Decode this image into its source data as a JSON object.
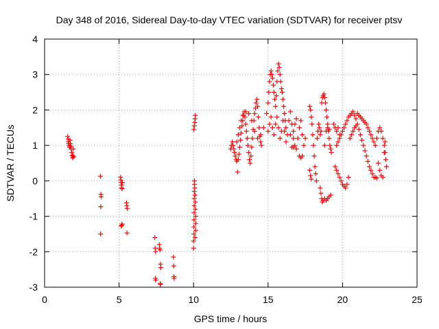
{
  "chart_data": {
    "type": "scatter",
    "title": "Day 348 of 2016, Sidereal Day-to-day VTEC variation (SDTVAR) for receiver ptsv",
    "xlabel": "GPS time / hours",
    "ylabel": "SDTVAR / TECUs",
    "xlim": [
      0,
      25
    ],
    "ylim": [
      -3,
      4
    ],
    "x_ticks": [
      0,
      5,
      10,
      15,
      20,
      25
    ],
    "y_ticks": [
      -3,
      -2,
      -1,
      0,
      1,
      2,
      3,
      4
    ],
    "grid": true,
    "marker": "+",
    "color": "#ff0000",
    "series": [
      {
        "name": "SDTVAR",
        "points": [
          [
            1.55,
            1.25
          ],
          [
            1.58,
            1.18
          ],
          [
            1.6,
            1.1
          ],
          [
            1.62,
            1.05
          ],
          [
            1.65,
            1.0
          ],
          [
            1.68,
            0.95
          ],
          [
            1.7,
            1.15
          ],
          [
            1.72,
            1.05
          ],
          [
            1.75,
            0.98
          ],
          [
            1.78,
            0.9
          ],
          [
            1.82,
            0.8
          ],
          [
            1.85,
            0.72
          ],
          [
            1.88,
            0.65
          ],
          [
            1.9,
            0.7
          ],
          [
            1.92,
            0.9
          ],
          [
            1.95,
            0.68
          ],
          [
            3.75,
            0.13
          ],
          [
            3.78,
            -0.38
          ],
          [
            3.8,
            -0.45
          ],
          [
            3.77,
            -0.73
          ],
          [
            3.76,
            -1.5
          ],
          [
            5.1,
            0.1
          ],
          [
            5.12,
            0.02
          ],
          [
            5.14,
            -0.05
          ],
          [
            5.16,
            -0.12
          ],
          [
            5.18,
            -0.2
          ],
          [
            5.2,
            -0.22
          ],
          [
            5.15,
            -1.28
          ],
          [
            5.18,
            -1.25
          ],
          [
            5.2,
            -1.22
          ],
          [
            5.22,
            -0.05
          ],
          [
            5.5,
            -0.62
          ],
          [
            5.52,
            -0.7
          ],
          [
            5.55,
            -0.78
          ],
          [
            5.53,
            -1.47
          ],
          [
            7.4,
            -1.6
          ],
          [
            7.42,
            -1.9
          ],
          [
            7.45,
            -2.0
          ],
          [
            7.44,
            -2.75
          ],
          [
            7.46,
            -2.8
          ],
          [
            7.7,
            -1.8
          ],
          [
            7.72,
            -1.9
          ],
          [
            7.75,
            -1.95
          ],
          [
            7.78,
            -2.35
          ],
          [
            7.8,
            -2.45
          ],
          [
            7.76,
            -2.9
          ],
          [
            7.78,
            -2.92
          ],
          [
            8.65,
            -2.15
          ],
          [
            8.67,
            -2.4
          ],
          [
            8.68,
            -2.7
          ],
          [
            8.7,
            -2.75
          ],
          [
            10.0,
            -1.9
          ],
          [
            10.0,
            -1.7
          ],
          [
            10.02,
            -1.5
          ],
          [
            10.02,
            -1.3
          ],
          [
            10.03,
            -1.1
          ],
          [
            10.03,
            -0.9
          ],
          [
            10.04,
            -0.7
          ],
          [
            10.04,
            -0.5
          ],
          [
            10.05,
            -0.3
          ],
          [
            10.06,
            -0.1
          ],
          [
            10.06,
            0.0
          ],
          [
            10.08,
            -0.2
          ],
          [
            10.1,
            -0.4
          ],
          [
            10.12,
            -0.6
          ],
          [
            10.12,
            -0.8
          ],
          [
            10.14,
            -1.0
          ],
          [
            10.15,
            -1.2
          ],
          [
            10.15,
            -1.4
          ],
          [
            10.1,
            -1.6
          ],
          [
            10.02,
            1.45
          ],
          [
            10.05,
            1.55
          ],
          [
            10.08,
            1.65
          ],
          [
            10.1,
            1.75
          ],
          [
            10.12,
            1.85
          ],
          [
            12.5,
            0.9
          ],
          [
            12.55,
            1.0
          ],
          [
            12.6,
            1.1
          ],
          [
            12.65,
            1.0
          ],
          [
            12.7,
            0.9
          ],
          [
            12.75,
            0.8
          ],
          [
            12.8,
            0.7
          ],
          [
            12.85,
            0.6
          ],
          [
            12.9,
            0.55
          ],
          [
            12.95,
            0.25
          ],
          [
            13.0,
            0.6
          ],
          [
            13.05,
            0.75
          ],
          [
            13.1,
            0.95
          ],
          [
            13.15,
            1.15
          ],
          [
            13.2,
            1.35
          ],
          [
            13.25,
            1.55
          ],
          [
            13.3,
            1.7
          ],
          [
            13.35,
            1.85
          ],
          [
            13.4,
            1.95
          ],
          [
            13.45,
            1.8
          ],
          [
            13.5,
            1.6
          ],
          [
            13.55,
            1.4
          ],
          [
            13.6,
            1.2
          ],
          [
            13.65,
            1.0
          ],
          [
            13.7,
            0.8
          ],
          [
            13.75,
            0.6
          ],
          [
            13.8,
            0.5
          ],
          [
            13.85,
            0.7
          ],
          [
            13.9,
            0.95
          ],
          [
            13.95,
            1.2
          ],
          [
            14.0,
            1.45
          ],
          [
            14.05,
            1.7
          ],
          [
            14.1,
            1.9
          ],
          [
            14.15,
            2.05
          ],
          [
            14.2,
            2.2
          ],
          [
            14.25,
            2.3
          ],
          [
            14.3,
            2.1
          ],
          [
            14.35,
            1.8
          ],
          [
            14.4,
            1.5
          ],
          [
            14.45,
            1.25
          ],
          [
            14.5,
            1.1
          ],
          [
            14.55,
            1.0
          ],
          [
            12.9,
            1.1
          ],
          [
            13.0,
            1.3
          ],
          [
            13.1,
            1.5
          ],
          [
            13.2,
            1.7
          ],
          [
            13.3,
            1.85
          ],
          [
            13.5,
            1.95
          ],
          [
            13.7,
            1.9
          ],
          [
            13.9,
            1.7
          ],
          [
            14.1,
            1.4
          ],
          [
            14.3,
            1.2
          ],
          [
            14.5,
            1.3
          ],
          [
            14.7,
            1.5
          ],
          [
            14.9,
            1.9
          ],
          [
            15.0,
            2.2
          ],
          [
            15.05,
            2.5
          ],
          [
            15.1,
            2.8
          ],
          [
            15.15,
            3.0
          ],
          [
            15.2,
            3.1
          ],
          [
            15.25,
            3.0
          ],
          [
            15.3,
            2.9
          ],
          [
            15.35,
            2.7
          ],
          [
            15.4,
            2.5
          ],
          [
            15.45,
            2.3
          ],
          [
            15.5,
            2.1
          ],
          [
            15.55,
            2.4
          ],
          [
            15.6,
            2.8
          ],
          [
            15.65,
            3.1
          ],
          [
            15.7,
            3.3
          ],
          [
            15.75,
            3.2
          ],
          [
            15.8,
            3.0
          ],
          [
            15.85,
            2.8
          ],
          [
            15.9,
            2.6
          ],
          [
            15.95,
            2.5
          ],
          [
            16.0,
            2.3
          ],
          [
            16.05,
            2.1
          ],
          [
            16.1,
            1.9
          ],
          [
            16.15,
            1.7
          ],
          [
            16.2,
            1.5
          ],
          [
            15.0,
            1.4
          ],
          [
            15.1,
            1.6
          ],
          [
            15.2,
            1.8
          ],
          [
            15.3,
            1.5
          ],
          [
            15.4,
            1.3
          ],
          [
            15.5,
            1.6
          ],
          [
            15.6,
            1.8
          ],
          [
            15.7,
            1.5
          ],
          [
            15.8,
            1.2
          ],
          [
            15.9,
            1.4
          ],
          [
            16.0,
            1.7
          ],
          [
            16.1,
            1.4
          ],
          [
            16.2,
            1.1
          ],
          [
            16.3,
            1.3
          ],
          [
            16.4,
            1.7
          ],
          [
            16.5,
            1.95
          ],
          [
            16.6,
            1.6
          ],
          [
            16.7,
            1.2
          ],
          [
            16.8,
            1.0
          ],
          [
            16.9,
            0.9
          ],
          [
            17.0,
            1.2
          ],
          [
            17.1,
            1.5
          ],
          [
            17.2,
            1.7
          ],
          [
            17.3,
            1.3
          ],
          [
            17.4,
            1.0
          ],
          [
            17.5,
            1.2
          ],
          [
            16.7,
            1.4
          ],
          [
            16.8,
            1.6
          ],
          [
            16.9,
            1.75
          ],
          [
            17.1,
            0.7
          ],
          [
            17.2,
            0.65
          ],
          [
            17.3,
            0.7
          ],
          [
            16.5,
            1.3
          ],
          [
            16.6,
            0.95
          ],
          [
            16.7,
            0.95
          ],
          [
            17.8,
            2.1
          ],
          [
            17.85,
            2.0
          ],
          [
            17.9,
            1.8
          ],
          [
            17.95,
            1.6
          ],
          [
            18.0,
            1.3
          ],
          [
            18.05,
            1.0
          ],
          [
            18.1,
            0.7
          ],
          [
            18.15,
            0.4
          ],
          [
            18.2,
            0.2
          ],
          [
            18.25,
            0.0
          ],
          [
            17.8,
            0.3
          ],
          [
            17.85,
            0.15
          ],
          [
            17.9,
            0.05
          ],
          [
            18.3,
            1.2
          ],
          [
            18.35,
            1.4
          ],
          [
            18.4,
            1.6
          ],
          [
            18.45,
            1.5
          ],
          [
            18.5,
            1.3
          ],
          [
            18.55,
            1.4
          ],
          [
            18.6,
            2.2
          ],
          [
            18.65,
            2.35
          ],
          [
            18.7,
            2.4
          ],
          [
            18.75,
            2.45
          ],
          [
            18.8,
            2.35
          ],
          [
            18.85,
            2.2
          ],
          [
            18.9,
            2.0
          ],
          [
            18.95,
            1.8
          ],
          [
            19.0,
            1.6
          ],
          [
            19.05,
            1.4
          ],
          [
            19.1,
            1.2
          ],
          [
            19.15,
            1.0
          ],
          [
            19.2,
            0.9
          ],
          [
            19.25,
            0.8
          ],
          [
            18.5,
            -0.2
          ],
          [
            18.55,
            -0.35
          ],
          [
            18.6,
            -0.5
          ],
          [
            18.65,
            -0.6
          ],
          [
            18.7,
            -0.55
          ],
          [
            18.8,
            -0.5
          ],
          [
            18.9,
            -0.55
          ],
          [
            19.0,
            -0.5
          ],
          [
            19.1,
            -0.45
          ],
          [
            19.2,
            -0.4
          ],
          [
            18.8,
            1.0
          ],
          [
            18.9,
            1.4
          ],
          [
            19.0,
            1.5
          ],
          [
            19.1,
            1.45
          ],
          [
            19.4,
            1.6
          ],
          [
            19.5,
            1.5
          ],
          [
            19.6,
            1.4
          ],
          [
            19.7,
            1.5
          ],
          [
            19.8,
            1.3
          ],
          [
            19.5,
            0.4
          ],
          [
            19.6,
            0.3
          ],
          [
            19.7,
            0.2
          ],
          [
            19.8,
            0.1
          ],
          [
            19.9,
            0.0
          ],
          [
            20.0,
            -0.1
          ],
          [
            20.1,
            -0.15
          ],
          [
            20.2,
            -0.2
          ],
          [
            20.3,
            -0.1
          ],
          [
            20.4,
            0.1
          ],
          [
            19.6,
            1.0
          ],
          [
            19.7,
            1.1
          ],
          [
            19.8,
            1.2
          ],
          [
            19.9,
            1.3
          ],
          [
            20.0,
            1.4
          ],
          [
            20.1,
            1.5
          ],
          [
            20.2,
            1.6
          ],
          [
            20.3,
            1.7
          ],
          [
            20.4,
            1.8
          ],
          [
            20.5,
            1.85
          ],
          [
            20.6,
            1.9
          ],
          [
            20.7,
            1.95
          ],
          [
            20.8,
            1.85
          ],
          [
            20.9,
            1.75
          ],
          [
            21.0,
            1.6
          ],
          [
            21.1,
            1.45
          ],
          [
            21.2,
            1.3
          ],
          [
            21.3,
            1.15
          ],
          [
            21.4,
            1.0
          ],
          [
            21.5,
            0.85
          ],
          [
            21.6,
            0.7
          ],
          [
            21.7,
            0.55
          ],
          [
            21.8,
            0.4
          ],
          [
            21.9,
            0.3
          ],
          [
            22.0,
            0.2
          ],
          [
            22.1,
            0.1
          ],
          [
            22.2,
            0.1
          ],
          [
            22.3,
            0.08
          ],
          [
            21.0,
            1.9
          ],
          [
            21.1,
            1.85
          ],
          [
            21.2,
            1.8
          ],
          [
            21.3,
            1.75
          ],
          [
            21.4,
            1.7
          ],
          [
            21.5,
            1.65
          ],
          [
            21.6,
            1.6
          ],
          [
            21.7,
            1.5
          ],
          [
            21.8,
            1.4
          ],
          [
            21.9,
            1.3
          ],
          [
            22.0,
            1.2
          ],
          [
            22.1,
            1.1
          ],
          [
            22.2,
            1.0
          ],
          [
            22.3,
            1.2
          ],
          [
            22.4,
            1.4
          ],
          [
            22.5,
            1.5
          ],
          [
            22.6,
            1.4
          ],
          [
            22.7,
            1.2
          ],
          [
            22.8,
            1.0
          ],
          [
            22.85,
            0.8
          ],
          [
            22.9,
            0.6
          ],
          [
            22.95,
            0.4
          ],
          [
            20.5,
            1.2
          ],
          [
            20.6,
            1.3
          ],
          [
            20.7,
            1.4
          ],
          [
            20.8,
            1.5
          ],
          [
            20.9,
            1.55
          ],
          [
            22.4,
            0.5
          ],
          [
            22.5,
            0.3
          ],
          [
            22.6,
            0.15
          ],
          [
            22.7,
            0.1
          ],
          [
            22.8,
            0.8
          ],
          [
            22.85,
            1.1
          ]
        ]
      }
    ]
  }
}
